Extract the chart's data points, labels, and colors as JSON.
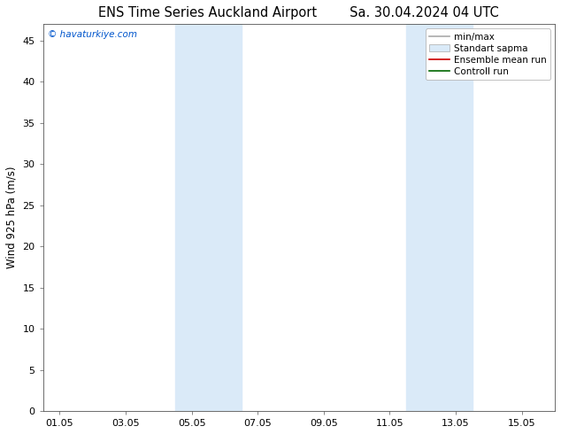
{
  "title_left": "ENS Time Series Auckland Airport",
  "title_right": "Sa. 30.04.2024 04 UTC",
  "ylabel": "Wind 925 hPa (m/s)",
  "watermark": "© havaturkiye.com",
  "watermark_color": "#0055cc",
  "xlim_start": -0.5,
  "xlim_end": 15.0,
  "ylim_min": 0,
  "ylim_max": 47,
  "yticks": [
    0,
    5,
    10,
    15,
    20,
    25,
    30,
    35,
    40,
    45
  ],
  "xtick_labels": [
    "01.05",
    "03.05",
    "05.05",
    "07.05",
    "09.05",
    "11.05",
    "13.05",
    "15.05"
  ],
  "xtick_positions": [
    0,
    2,
    4,
    6,
    8,
    10,
    12,
    14
  ],
  "shaded_bands": [
    {
      "xmin": 3.5,
      "xmax": 5.5,
      "color": "#daeaf8",
      "alpha": 1.0
    },
    {
      "xmin": 10.5,
      "xmax": 12.5,
      "color": "#daeaf8",
      "alpha": 1.0
    }
  ],
  "legend_entries": [
    {
      "label": "min/max",
      "color": "#aaaaaa",
      "lw": 1.2,
      "linestyle": "-"
    },
    {
      "label": "Standart sapma",
      "facecolor": "#daeaf8",
      "edgecolor": "#aaaaaa"
    },
    {
      "label": "Ensemble mean run",
      "color": "#cc0000",
      "lw": 1.2,
      "linestyle": "-"
    },
    {
      "label": "Controll run",
      "color": "#006600",
      "lw": 1.2,
      "linestyle": "-"
    }
  ],
  "bg_color": "#ffffff",
  "plot_bg_color": "#ffffff",
  "title_fontsize": 10.5,
  "axis_label_fontsize": 8.5,
  "tick_fontsize": 8,
  "legend_fontsize": 7.5
}
